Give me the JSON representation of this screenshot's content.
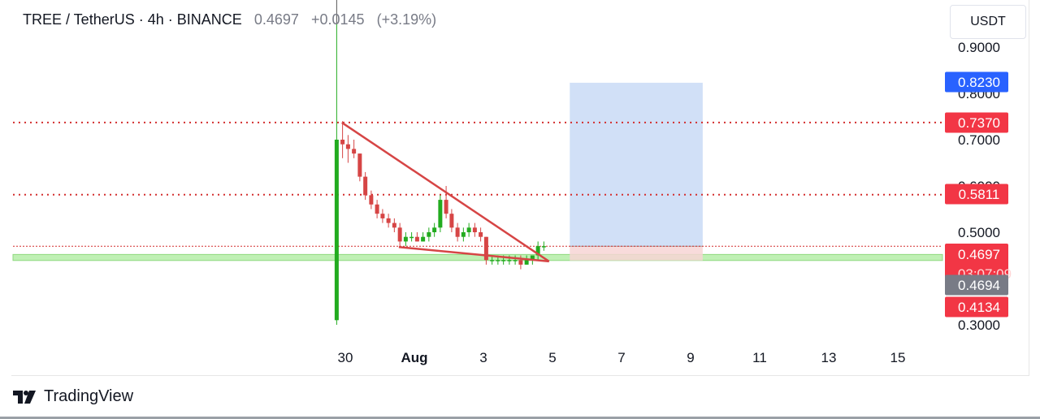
{
  "header": {
    "symbol": "TREE / TetherUS",
    "interval": "4h",
    "exchange": "BINANCE",
    "last_price": "0.4697",
    "change": "+0.0145",
    "change_pct": "(+3.19%)"
  },
  "currency_button": {
    "label": "USDT"
  },
  "footer": {
    "brand": "TradingView",
    "logo_icon": "tradingview-logo-icon"
  },
  "colors": {
    "up": "#22ab1f",
    "down": "#d64545",
    "trendline": "#d64545",
    "level_line": "#d32f2f",
    "target_zone": "#c9dbf6",
    "stop_zone": "#f7d5d5",
    "support_band": "#bff0b4",
    "axis_text": "#131722",
    "price_label_red": "#f23645",
    "price_label_blue": "#2962ff",
    "price_label_gray": "#787b86"
  },
  "chart_data": {
    "type": "candlestick",
    "ylim": [
      0.28,
      0.95
    ],
    "y_ticks": [
      "0.3000",
      "0.5000",
      "0.6000",
      "0.7000",
      "0.8000",
      "0.9000"
    ],
    "x_ticks": [
      {
        "label": "30",
        "day": 30
      },
      {
        "label": "Aug",
        "day": 32
      },
      {
        "label": "3",
        "day": 34
      },
      {
        "label": "5",
        "day": 36
      },
      {
        "label": "7",
        "day": 38
      },
      {
        "label": "9",
        "day": 40
      },
      {
        "label": "11",
        "day": 42
      },
      {
        "label": "13",
        "day": 44
      },
      {
        "label": "15",
        "day": 46
      }
    ],
    "candles": [
      {
        "t": 29.75,
        "o": 0.31,
        "h": 0.95,
        "l": 0.3,
        "c": 0.7
      },
      {
        "t": 29.92,
        "o": 0.7,
        "h": 0.74,
        "l": 0.66,
        "c": 0.69
      },
      {
        "t": 30.08,
        "o": 0.69,
        "h": 0.71,
        "l": 0.65,
        "c": 0.68
      },
      {
        "t": 30.25,
        "o": 0.68,
        "h": 0.7,
        "l": 0.66,
        "c": 0.67
      },
      {
        "t": 30.42,
        "o": 0.67,
        "h": 0.67,
        "l": 0.61,
        "c": 0.62
      },
      {
        "t": 30.58,
        "o": 0.62,
        "h": 0.63,
        "l": 0.57,
        "c": 0.58
      },
      {
        "t": 30.75,
        "o": 0.58,
        "h": 0.59,
        "l": 0.55,
        "c": 0.56
      },
      {
        "t": 30.92,
        "o": 0.56,
        "h": 0.57,
        "l": 0.53,
        "c": 0.54
      },
      {
        "t": 31.08,
        "o": 0.54,
        "h": 0.55,
        "l": 0.52,
        "c": 0.53
      },
      {
        "t": 31.25,
        "o": 0.53,
        "h": 0.54,
        "l": 0.51,
        "c": 0.52
      },
      {
        "t": 31.42,
        "o": 0.52,
        "h": 0.53,
        "l": 0.5,
        "c": 0.51
      },
      {
        "t": 31.58,
        "o": 0.51,
        "h": 0.52,
        "l": 0.47,
        "c": 0.48
      },
      {
        "t": 31.75,
        "o": 0.48,
        "h": 0.5,
        "l": 0.47,
        "c": 0.49
      },
      {
        "t": 31.92,
        "o": 0.49,
        "h": 0.5,
        "l": 0.48,
        "c": 0.49
      },
      {
        "t": 32.08,
        "o": 0.49,
        "h": 0.5,
        "l": 0.48,
        "c": 0.48
      },
      {
        "t": 32.25,
        "o": 0.48,
        "h": 0.5,
        "l": 0.48,
        "c": 0.49
      },
      {
        "t": 32.42,
        "o": 0.49,
        "h": 0.51,
        "l": 0.48,
        "c": 0.5
      },
      {
        "t": 32.58,
        "o": 0.5,
        "h": 0.52,
        "l": 0.49,
        "c": 0.51
      },
      {
        "t": 32.75,
        "o": 0.51,
        "h": 0.58,
        "l": 0.5,
        "c": 0.57
      },
      {
        "t": 32.92,
        "o": 0.57,
        "h": 0.6,
        "l": 0.53,
        "c": 0.54
      },
      {
        "t": 33.08,
        "o": 0.54,
        "h": 0.55,
        "l": 0.5,
        "c": 0.51
      },
      {
        "t": 33.25,
        "o": 0.51,
        "h": 0.52,
        "l": 0.48,
        "c": 0.49
      },
      {
        "t": 33.42,
        "o": 0.49,
        "h": 0.51,
        "l": 0.48,
        "c": 0.5
      },
      {
        "t": 33.58,
        "o": 0.5,
        "h": 0.52,
        "l": 0.49,
        "c": 0.51
      },
      {
        "t": 33.75,
        "o": 0.51,
        "h": 0.52,
        "l": 0.49,
        "c": 0.5
      },
      {
        "t": 33.92,
        "o": 0.5,
        "h": 0.51,
        "l": 0.48,
        "c": 0.49
      },
      {
        "t": 34.08,
        "o": 0.49,
        "h": 0.49,
        "l": 0.43,
        "c": 0.44
      },
      {
        "t": 34.25,
        "o": 0.44,
        "h": 0.45,
        "l": 0.43,
        "c": 0.44
      },
      {
        "t": 34.42,
        "o": 0.44,
        "h": 0.45,
        "l": 0.43,
        "c": 0.44
      },
      {
        "t": 34.58,
        "o": 0.44,
        "h": 0.45,
        "l": 0.43,
        "c": 0.44
      },
      {
        "t": 34.75,
        "o": 0.44,
        "h": 0.45,
        "l": 0.43,
        "c": 0.44
      },
      {
        "t": 34.92,
        "o": 0.44,
        "h": 0.45,
        "l": 0.43,
        "c": 0.44
      },
      {
        "t": 35.08,
        "o": 0.44,
        "h": 0.45,
        "l": 0.42,
        "c": 0.43
      },
      {
        "t": 35.25,
        "o": 0.43,
        "h": 0.45,
        "l": 0.43,
        "c": 0.44
      },
      {
        "t": 35.42,
        "o": 0.44,
        "h": 0.45,
        "l": 0.43,
        "c": 0.45
      },
      {
        "t": 35.58,
        "o": 0.45,
        "h": 0.48,
        "l": 0.44,
        "c": 0.47
      },
      {
        "t": 35.75,
        "o": 0.47,
        "h": 0.48,
        "l": 0.46,
        "c": 0.47
      }
    ],
    "horizontal_levels": [
      {
        "price": 0.737,
        "style": "dotted"
      },
      {
        "price": 0.5811,
        "style": "dotted"
      },
      {
        "price": 0.4697,
        "style": "dotted-thin"
      }
    ],
    "support_zone": {
      "from": 0.439,
      "to": 0.452
    },
    "trendlines": [
      {
        "from": {
          "t": 29.9,
          "p": 0.737
        },
        "to": {
          "t": 35.9,
          "p": 0.437
        }
      },
      {
        "from": {
          "t": 31.55,
          "p": 0.468
        },
        "to": {
          "t": 35.9,
          "p": 0.437
        }
      }
    ],
    "position_tool": {
      "t_start": 36.5,
      "t_end": 40.35,
      "entry": 0.4697,
      "target": 0.823,
      "stop": 0.439
    },
    "price_labels": [
      {
        "text": "0.8230",
        "price": 0.823,
        "color": "blue"
      },
      {
        "text": "0.7370",
        "price": 0.737,
        "color": "red"
      },
      {
        "text": "0.5811",
        "price": 0.5811,
        "color": "red"
      },
      {
        "text": "0.4697",
        "sub": "03:07:09",
        "price": 0.4697,
        "color": "red"
      },
      {
        "text": "0.4694",
        "price": 0.4694,
        "color": "gray"
      },
      {
        "text": "0.4134",
        "price": 0.4134,
        "color": "red"
      }
    ]
  }
}
